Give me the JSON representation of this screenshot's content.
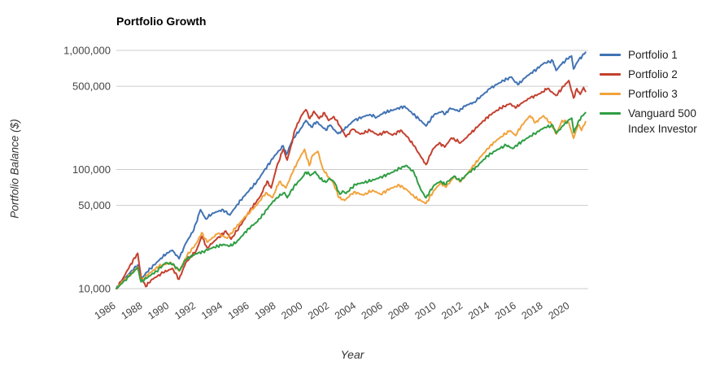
{
  "header": {
    "title": "Portfolio Growth"
  },
  "chart_data": {
    "type": "line",
    "title": "Portfolio Growth",
    "xlabel": "Year",
    "ylabel": "Portfolio Balance ($)",
    "y_scale": "log",
    "ylim": [
      9500,
      1100000
    ],
    "xlim": [
      1986,
      2021.35
    ],
    "grid": "horizontal-only",
    "gridline_color": "#cccccc",
    "tick_label_color": "#444444",
    "legend_position": "right",
    "xticks": [
      1986,
      1988,
      1990,
      1992,
      1994,
      1996,
      1998,
      2000,
      2002,
      2004,
      2006,
      2008,
      2010,
      2012,
      2014,
      2016,
      2018,
      2020
    ],
    "yticks": [
      {
        "value": 10000,
        "label": "10,000"
      },
      {
        "value": 50000,
        "label": "50,000"
      },
      {
        "value": 100000,
        "label": "100,000"
      },
      {
        "value": 500000,
        "label": "500,000"
      },
      {
        "value": 1000000,
        "label": "1,000,000"
      }
    ],
    "series": [
      {
        "name": "Portfolio 1",
        "color": "#4173b3",
        "points": [
          [
            1986,
            10000
          ],
          [
            1986.5,
            11800
          ],
          [
            1987,
            13500
          ],
          [
            1987.6,
            15800
          ],
          [
            1987.85,
            12000
          ],
          [
            1988.3,
            13800
          ],
          [
            1989,
            16500
          ],
          [
            1989.8,
            20000
          ],
          [
            1990.2,
            21000
          ],
          [
            1990.7,
            17800
          ],
          [
            1991.2,
            24000
          ],
          [
            1991.8,
            31000
          ],
          [
            1992.3,
            46000
          ],
          [
            1992.7,
            38500
          ],
          [
            1993.2,
            43000
          ],
          [
            1994,
            46000
          ],
          [
            1994.5,
            41500
          ],
          [
            1995,
            50000
          ],
          [
            1995.8,
            64000
          ],
          [
            1996.5,
            78000
          ],
          [
            1997,
            95000
          ],
          [
            1997.8,
            128000
          ],
          [
            1998.5,
            158000
          ],
          [
            1998.75,
            134000
          ],
          [
            1999.2,
            178000
          ],
          [
            1999.8,
            220000
          ],
          [
            2000.2,
            258000
          ],
          [
            2000.6,
            228000
          ],
          [
            2001,
            252000
          ],
          [
            2001.7,
            214000
          ],
          [
            2002,
            236000
          ],
          [
            2002.6,
            200000
          ],
          [
            2003,
            214000
          ],
          [
            2003.8,
            258000
          ],
          [
            2004.5,
            278000
          ],
          [
            2005,
            290000
          ],
          [
            2005.5,
            274000
          ],
          [
            2006,
            298000
          ],
          [
            2006.8,
            318000
          ],
          [
            2007.6,
            340000
          ],
          [
            2008,
            308000
          ],
          [
            2008.8,
            258000
          ],
          [
            2009.2,
            232000
          ],
          [
            2009.8,
            288000
          ],
          [
            2010.4,
            308000
          ],
          [
            2010.65,
            292000
          ],
          [
            2011,
            328000
          ],
          [
            2011.7,
            308000
          ],
          [
            2012,
            338000
          ],
          [
            2012.8,
            368000
          ],
          [
            2013.5,
            428000
          ],
          [
            2014,
            478000
          ],
          [
            2014.5,
            518000
          ],
          [
            2015,
            558000
          ],
          [
            2015.6,
            598000
          ],
          [
            2015.85,
            544000
          ],
          [
            2016.15,
            520000
          ],
          [
            2016.5,
            578000
          ],
          [
            2017,
            638000
          ],
          [
            2017.5,
            698000
          ],
          [
            2018,
            778000
          ],
          [
            2018.7,
            818000
          ],
          [
            2018.95,
            678000
          ],
          [
            2019.3,
            758000
          ],
          [
            2019.8,
            848000
          ],
          [
            2020.1,
            898000
          ],
          [
            2020.25,
            698000
          ],
          [
            2020.6,
            818000
          ],
          [
            2020.9,
            898000
          ],
          [
            2021.15,
            965000
          ]
        ]
      },
      {
        "name": "Portfolio 2",
        "color": "#c4402f",
        "points": [
          [
            1986,
            10000
          ],
          [
            1986.5,
            12200
          ],
          [
            1987,
            15500
          ],
          [
            1987.6,
            19800
          ],
          [
            1987.85,
            12500
          ],
          [
            1988.2,
            10400
          ],
          [
            1988.6,
            11800
          ],
          [
            1989.5,
            13600
          ],
          [
            1990.2,
            14800
          ],
          [
            1990.7,
            12000
          ],
          [
            1991.2,
            16500
          ],
          [
            1992,
            21000
          ],
          [
            1992.4,
            27500
          ],
          [
            1992.8,
            22000
          ],
          [
            1993.5,
            26000
          ],
          [
            1994.2,
            30500
          ],
          [
            1994.6,
            26000
          ],
          [
            1995.3,
            34000
          ],
          [
            1996,
            45000
          ],
          [
            1996.8,
            60000
          ],
          [
            1997.3,
            80000
          ],
          [
            1997.6,
            70000
          ],
          [
            1998,
            104000
          ],
          [
            1998.5,
            148000
          ],
          [
            1998.8,
            120000
          ],
          [
            1999.1,
            160000
          ],
          [
            1999.4,
            218000
          ],
          [
            1999.9,
            288000
          ],
          [
            2000.2,
            318000
          ],
          [
            2000.5,
            268000
          ],
          [
            2000.8,
            308000
          ],
          [
            2001.2,
            268000
          ],
          [
            2001.6,
            298000
          ],
          [
            2001.9,
            258000
          ],
          [
            2002.3,
            278000
          ],
          [
            2002.8,
            228000
          ],
          [
            2003.2,
            188000
          ],
          [
            2003.7,
            218000
          ],
          [
            2004.3,
            198000
          ],
          [
            2005,
            214000
          ],
          [
            2005.6,
            194000
          ],
          [
            2006.2,
            208000
          ],
          [
            2006.7,
            194000
          ],
          [
            2007.3,
            214000
          ],
          [
            2007.8,
            188000
          ],
          [
            2008.3,
            158000
          ],
          [
            2008.9,
            124000
          ],
          [
            2009.2,
            110000
          ],
          [
            2009.7,
            148000
          ],
          [
            2010.2,
            168000
          ],
          [
            2010.6,
            154000
          ],
          [
            2011.1,
            184000
          ],
          [
            2011.8,
            168000
          ],
          [
            2012.5,
            198000
          ],
          [
            2013.2,
            238000
          ],
          [
            2014,
            288000
          ],
          [
            2014.8,
            328000
          ],
          [
            2015.5,
            358000
          ],
          [
            2015.9,
            328000
          ],
          [
            2016.3,
            358000
          ],
          [
            2017,
            398000
          ],
          [
            2017.8,
            438000
          ],
          [
            2018.3,
            478000
          ],
          [
            2018.95,
            418000
          ],
          [
            2019.5,
            498000
          ],
          [
            2019.9,
            558000
          ],
          [
            2020.25,
            398000
          ],
          [
            2020.5,
            478000
          ],
          [
            2020.75,
            428000
          ],
          [
            2021,
            488000
          ],
          [
            2021.15,
            452000
          ]
        ]
      },
      {
        "name": "Portfolio 3",
        "color": "#f2a33c",
        "points": [
          [
            1986,
            10000
          ],
          [
            1986.5,
            11600
          ],
          [
            1987,
            13000
          ],
          [
            1987.6,
            15200
          ],
          [
            1987.85,
            11500
          ],
          [
            1988.4,
            13200
          ],
          [
            1989.2,
            15500
          ],
          [
            1990.1,
            16500
          ],
          [
            1990.7,
            14000
          ],
          [
            1991.3,
            19000
          ],
          [
            1992,
            24000
          ],
          [
            1992.4,
            29500
          ],
          [
            1992.8,
            24500
          ],
          [
            1993.6,
            29000
          ],
          [
            1994.3,
            26500
          ],
          [
            1995,
            33000
          ],
          [
            1995.8,
            42000
          ],
          [
            1996.5,
            50000
          ],
          [
            1997.2,
            64000
          ],
          [
            1997.7,
            58000
          ],
          [
            1998.2,
            79000
          ],
          [
            1998.7,
            70000
          ],
          [
            1999.2,
            94000
          ],
          [
            1999.6,
            118000
          ],
          [
            2000.1,
            148000
          ],
          [
            2000.45,
            108000
          ],
          [
            2000.7,
            132000
          ],
          [
            2001.1,
            142000
          ],
          [
            2001.45,
            103000
          ],
          [
            2001.8,
            89000
          ],
          [
            2002.2,
            79000
          ],
          [
            2002.7,
            58000
          ],
          [
            2003.1,
            55000
          ],
          [
            2003.8,
            65000
          ],
          [
            2004.5,
            61000
          ],
          [
            2005.2,
            67000
          ],
          [
            2005.8,
            62000
          ],
          [
            2006.5,
            69000
          ],
          [
            2007.2,
            74000
          ],
          [
            2007.8,
            67000
          ],
          [
            2008.3,
            59000
          ],
          [
            2008.9,
            54000
          ],
          [
            2009.2,
            52000
          ],
          [
            2009.8,
            67000
          ],
          [
            2010.3,
            77000
          ],
          [
            2010.7,
            71000
          ],
          [
            2011.3,
            87000
          ],
          [
            2011.8,
            79000
          ],
          [
            2012.5,
            99000
          ],
          [
            2013.3,
            128000
          ],
          [
            2014,
            158000
          ],
          [
            2014.8,
            188000
          ],
          [
            2015.5,
            212000
          ],
          [
            2015.9,
            193000
          ],
          [
            2016.4,
            238000
          ],
          [
            2017,
            283000
          ],
          [
            2017.4,
            248000
          ],
          [
            2018,
            283000
          ],
          [
            2018.6,
            238000
          ],
          [
            2018.95,
            198000
          ],
          [
            2019.4,
            258000
          ],
          [
            2019.9,
            248000
          ],
          [
            2020.25,
            183000
          ],
          [
            2020.6,
            238000
          ],
          [
            2020.85,
            213000
          ],
          [
            2021.15,
            252000
          ]
        ]
      },
      {
        "name": "Vanguard 500 Index Investor",
        "color": "#2f9e44",
        "points": [
          [
            1986,
            10000
          ],
          [
            1986.5,
            11300
          ],
          [
            1987,
            12800
          ],
          [
            1987.6,
            15000
          ],
          [
            1987.85,
            11400
          ],
          [
            1988.4,
            12600
          ],
          [
            1989,
            14000
          ],
          [
            1989.7,
            16500
          ],
          [
            1990.2,
            16000
          ],
          [
            1990.75,
            14200
          ],
          [
            1991.2,
            17500
          ],
          [
            1991.9,
            19500
          ],
          [
            1992.5,
            20500
          ],
          [
            1993.2,
            22000
          ],
          [
            1994,
            23500
          ],
          [
            1994.5,
            22800
          ],
          [
            1995,
            24500
          ],
          [
            1995.9,
            32000
          ],
          [
            1996.5,
            36000
          ],
          [
            1997,
            42000
          ],
          [
            1997.5,
            50000
          ],
          [
            1998,
            58000
          ],
          [
            1998.6,
            64000
          ],
          [
            1998.8,
            58000
          ],
          [
            1999.3,
            72000
          ],
          [
            1999.9,
            85000
          ],
          [
            2000.2,
            95000
          ],
          [
            2000.6,
            90000
          ],
          [
            2000.9,
            96000
          ],
          [
            2001.2,
            85000
          ],
          [
            2001.7,
            78000
          ],
          [
            2001.95,
            84000
          ],
          [
            2002.3,
            79000
          ],
          [
            2002.75,
            62000
          ],
          [
            2002.95,
            66000
          ],
          [
            2003.2,
            63000
          ],
          [
            2003.9,
            75000
          ],
          [
            2004.6,
            78000
          ],
          [
            2005.3,
            82000
          ],
          [
            2006,
            88000
          ],
          [
            2006.7,
            95000
          ],
          [
            2007.4,
            105000
          ],
          [
            2007.75,
            108000
          ],
          [
            2008.3,
            94000
          ],
          [
            2008.8,
            68000
          ],
          [
            2009.2,
            58000
          ],
          [
            2009.8,
            74000
          ],
          [
            2010.3,
            80000
          ],
          [
            2010.6,
            75000
          ],
          [
            2011.3,
            88000
          ],
          [
            2011.75,
            80000
          ],
          [
            2012.3,
            92000
          ],
          [
            2013,
            106000
          ],
          [
            2013.8,
            130000
          ],
          [
            2014.5,
            146000
          ],
          [
            2015.2,
            160000
          ],
          [
            2015.7,
            150000
          ],
          [
            2016.1,
            164000
          ],
          [
            2016.8,
            184000
          ],
          [
            2017.5,
            206000
          ],
          [
            2018.1,
            226000
          ],
          [
            2018.7,
            234000
          ],
          [
            2018.95,
            202000
          ],
          [
            2019.5,
            234000
          ],
          [
            2019.9,
            262000
          ],
          [
            2020.12,
            270000
          ],
          [
            2020.28,
            204000
          ],
          [
            2020.6,
            252000
          ],
          [
            2020.9,
            282000
          ],
          [
            2021.15,
            300000
          ]
        ]
      }
    ]
  }
}
